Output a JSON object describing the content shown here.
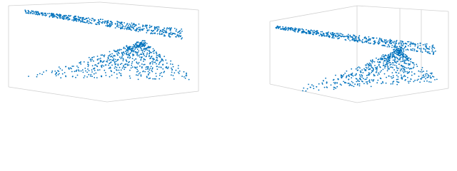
{
  "panels": [
    {
      "type": "scatter3d"
    },
    {
      "type": "scatter3d"
    }
  ]
}
